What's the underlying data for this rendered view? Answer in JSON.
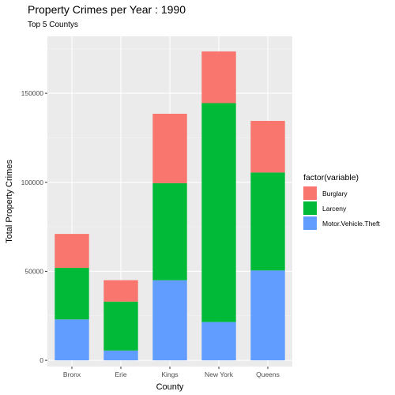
{
  "chart_data": {
    "type": "bar",
    "stacked": true,
    "title": "Property Crimes per Year : 1990",
    "subtitle": "Top 5 Countys",
    "xlabel": "County",
    "ylabel": "Total Property Crimes",
    "categories": [
      "Bronx",
      "Erie",
      "Kings",
      "New York",
      "Queens"
    ],
    "series": [
      {
        "name": "Motor.Vehicle.Theft",
        "color": "#619CFF",
        "values": [
          23000,
          5500,
          45000,
          21500,
          50500
        ]
      },
      {
        "name": "Larceny",
        "color": "#00BA38",
        "values": [
          29000,
          27500,
          54500,
          123000,
          55000
        ]
      },
      {
        "name": "Burglary",
        "color": "#F8766D",
        "values": [
          19000,
          12000,
          39000,
          29000,
          29000
        ]
      }
    ],
    "ylim": [
      -3500,
      182000
    ],
    "yticks": [
      0,
      50000,
      100000,
      150000
    ],
    "ytick_labels": [
      "0",
      "50000",
      "100000",
      "150000"
    ],
    "legend": {
      "title": "factor(variable)",
      "position": "right",
      "order": [
        "Burglary",
        "Larceny",
        "Motor.Vehicle.Theft"
      ]
    },
    "panel_background": "#EBEBEB",
    "grid": true
  }
}
